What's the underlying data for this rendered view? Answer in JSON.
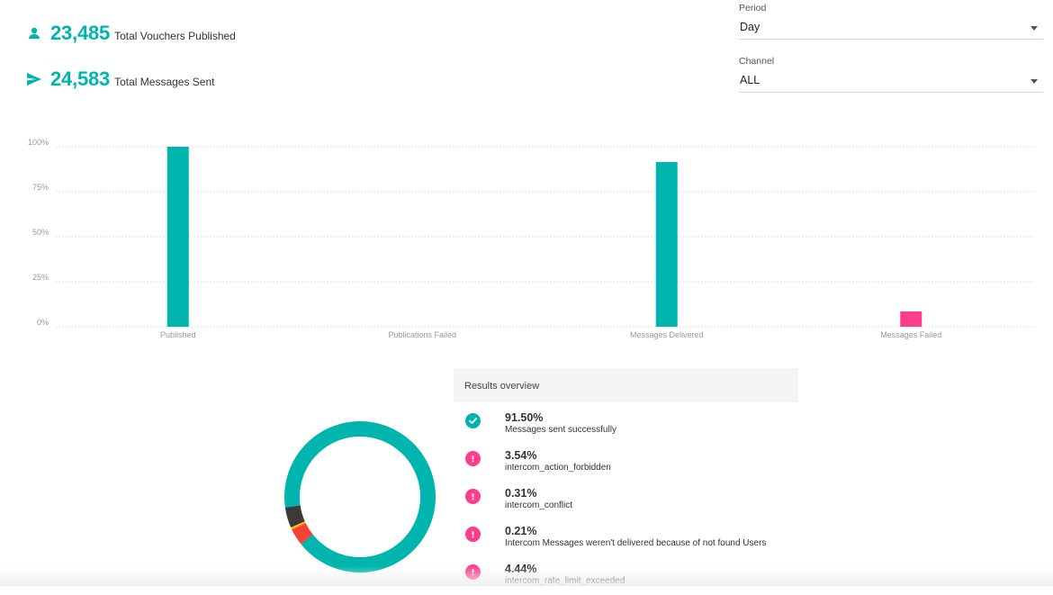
{
  "stats": [
    {
      "value": "23,485",
      "label": "Total Vouchers Published",
      "icon": "person-icon"
    },
    {
      "value": "24,583",
      "label": "Total Messages Sent",
      "icon": "send-icon"
    }
  ],
  "filters": {
    "period": {
      "label": "Period",
      "value": "Day"
    },
    "channel": {
      "label": "Channel",
      "value": "ALL"
    }
  },
  "colors": {
    "accent": "#00b5ad",
    "failed": "#ff3d8b",
    "dark": "#3f3a3a",
    "red": "#f44336",
    "orange": "#ffb300"
  },
  "chart_data": [
    {
      "type": "bar",
      "categories": [
        "Published",
        "Publications Failed",
        "Messages Delivered",
        "Messages Failed"
      ],
      "values": [
        100,
        0,
        91.5,
        8.5
      ],
      "bar_colors": [
        "#00b5ad",
        "#00b5ad",
        "#00b5ad",
        "#ff3d8b"
      ],
      "ylim": [
        0,
        100
      ],
      "yticks": [
        "0%",
        "25%",
        "50%",
        "75%",
        "100%"
      ],
      "grid": true
    },
    {
      "type": "pie",
      "labels": [
        "Messages sent successfully",
        "intercom_action_forbidden",
        "intercom_conflict",
        "Intercom Messages weren't delivered because of not found Users",
        "intercom_rate_limit_exceeded"
      ],
      "values": [
        91.5,
        3.54,
        0.31,
        0.21,
        4.44
      ],
      "colors": [
        "#00b5ad",
        "#f44336",
        "#ff9800",
        "#ffd600",
        "#3f3a3a"
      ]
    }
  ],
  "results": {
    "title": "Results overview",
    "items": [
      {
        "pct": "91.50%",
        "desc": "Messages sent successfully",
        "status": "success"
      },
      {
        "pct": "3.54%",
        "desc": "intercom_action_forbidden",
        "status": "error"
      },
      {
        "pct": "0.31%",
        "desc": "intercom_conflict",
        "status": "error"
      },
      {
        "pct": "0.21%",
        "desc": "Intercom Messages weren't delivered because of not found Users",
        "status": "error"
      },
      {
        "pct": "4.44%",
        "desc": "intercom_rate_limit_exceeded",
        "status": "error"
      }
    ]
  }
}
